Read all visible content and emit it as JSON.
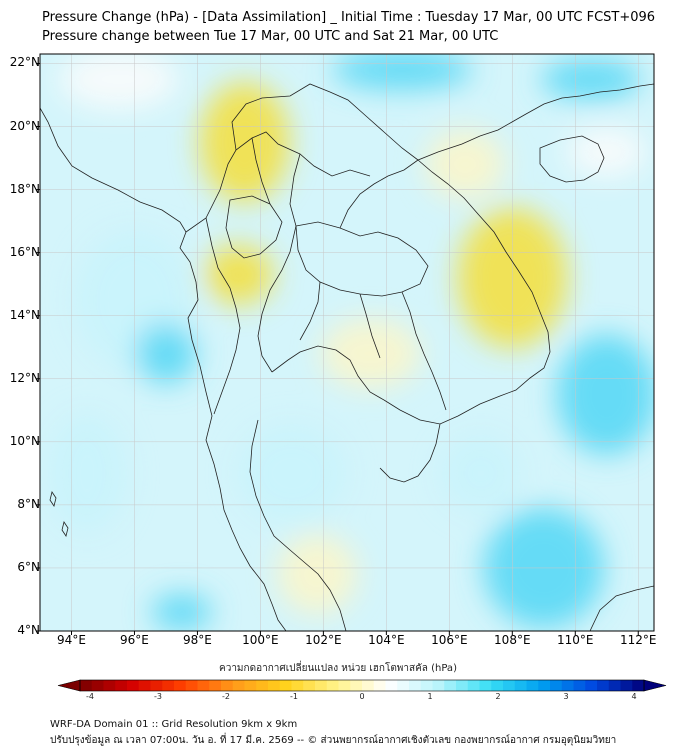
{
  "title_line1": "Pressure Change (hPa) - [Data Assimilation] _ Initial Time : Tuesday 17 Mar, 00 UTC FCST+096",
  "title_line2": "Pressure change between Tue 17 Mar, 00 UTC and Sat 21 Mar, 00 UTC",
  "map": {
    "lat_labels": [
      "22°N",
      "20°N",
      "18°N",
      "16°N",
      "14°N",
      "12°N",
      "10°N",
      "8°N",
      "6°N",
      "4°N"
    ],
    "lon_labels": [
      "94°E",
      "96°E",
      "98°E",
      "100°E",
      "102°E",
      "104°E",
      "106°E",
      "108°E",
      "110°E",
      "112°E"
    ],
    "lat_range": [
      4,
      22.3
    ],
    "lon_range": [
      93,
      112.5
    ],
    "field_colors": {
      "negative_strong": "#f5de38",
      "negative_weak": "#fdf6c8",
      "neutral": "#fbfbfb",
      "positive_weak": "#c8f3fb",
      "positive_strong": "#52d6f5"
    },
    "coastline_color": "#222222"
  },
  "colorbar": {
    "label": "ความกดอากาศเปลี่ยนแปลง หน่วย เฮกโตพาสคัล (hPa)",
    "ticks": [
      "-4",
      "-3",
      "-2",
      "-1",
      "0",
      "1",
      "2",
      "3",
      "4"
    ],
    "min": -4,
    "max": 4,
    "colors": [
      "#7a0000",
      "#d40000",
      "#ff4000",
      "#ff9a1a",
      "#ffd21c",
      "#fff38a",
      "#ffffff",
      "#b8f4fb",
      "#38def5",
      "#009ff0",
      "#0048e0",
      "#00007a"
    ]
  },
  "footer_line1": "WRF-DA Domain 01 :: Grid Resolution 9km x 9km",
  "footer_line2": "ปรับปรุงข้อมูล ณ เวลา 07:00น. วัน อ. ที่ 17 มี.ค. 2569 -- © ส่วนพยากรณ์อากาศเชิงตัวเลข กองพยากรณ์อากาศ กรมอุตุนิยมวิทยา"
}
